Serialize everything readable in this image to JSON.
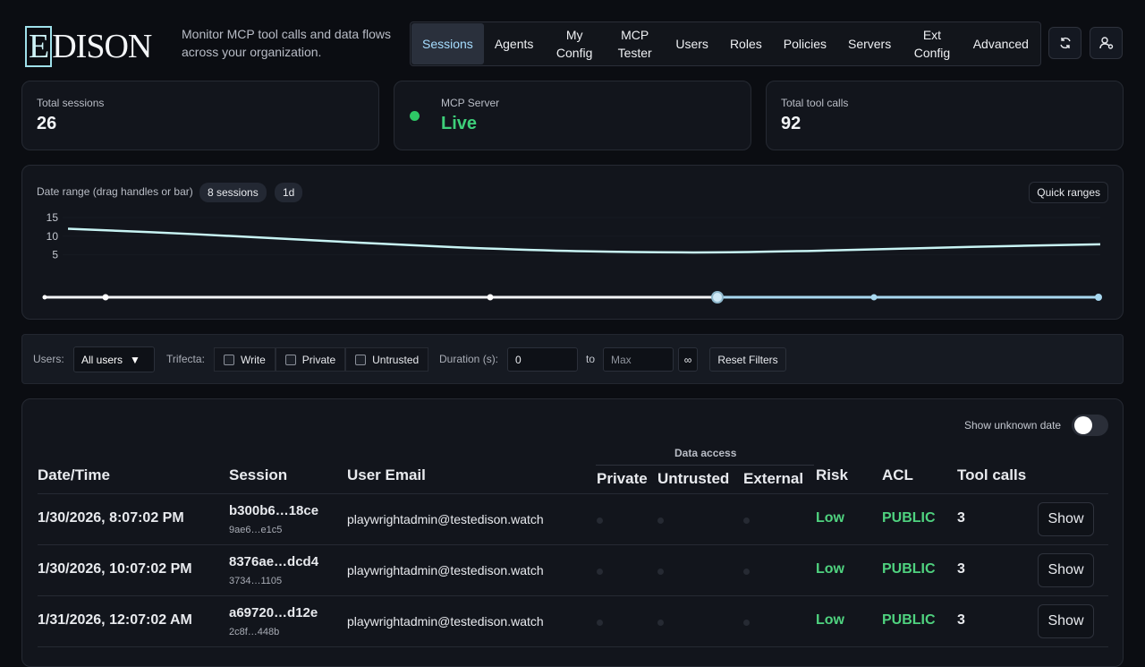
{
  "header": {
    "logo": "EDISON",
    "tagline": "Monitor MCP tool calls and data flows across your organization.",
    "nav": [
      "Sessions",
      "Agents",
      "My Config",
      "MCP Tester",
      "Users",
      "Roles",
      "Policies",
      "Servers",
      "Ext Config",
      "Advanced"
    ]
  },
  "stats": [
    {
      "label": "Total sessions",
      "value": 26
    },
    {
      "label": "MCP Server",
      "value": "Live"
    },
    {
      "label": "Total tool calls",
      "value": 92
    }
  ],
  "date_range": {
    "label": "Date range (drag handles or bar)",
    "badges": [
      "8 sessions",
      "1d"
    ],
    "quick_ranges": "Quick ranges",
    "chart": {
      "type": "line",
      "ylim": [
        0,
        16
      ],
      "yticks": [
        5,
        10,
        15
      ],
      "values": [
        12,
        10.5,
        8.7,
        7,
        5.9,
        5.6,
        6.2,
        7.1,
        7.8
      ],
      "color": "#c8f4f4"
    }
  },
  "filters": {
    "users_label": "Users:",
    "users_value": "All users",
    "trifecta_label": "Trifecta:",
    "trifecta": [
      "Write",
      "Private",
      "Untrusted"
    ],
    "duration_label": "Duration (s):",
    "min": "0",
    "to": "to",
    "max": "Max",
    "infinity": "∞",
    "reset": "Reset Filters"
  },
  "table": {
    "toggle_label": "Show unknown date",
    "group_header": "Data access",
    "headers": [
      "Date/Time",
      "Session",
      "User Email",
      "Private",
      "Untrusted",
      "External",
      "Risk",
      "ACL",
      "Tool calls"
    ],
    "rows": [
      {
        "date": "1/30/2026, 8:07:02 PM",
        "session": "b300b6…18ce",
        "session_sub": "9ae6…e1c5",
        "email": "playwrightadmin@testedison.watch",
        "risk": "Low",
        "acl": "PUBLIC",
        "tool_calls": 3,
        "action": "Show"
      },
      {
        "date": "1/30/2026, 10:07:02 PM",
        "session": "8376ae…dcd4",
        "session_sub": "3734…1105",
        "email": "playwrightadmin@testedison.watch",
        "risk": "Low",
        "acl": "PUBLIC",
        "tool_calls": 3,
        "action": "Show"
      },
      {
        "date": "1/31/2026, 12:07:02 AM",
        "session": "a69720…d12e",
        "session_sub": "2c8f…448b",
        "email": "playwrightadmin@testedison.watch",
        "risk": "Low",
        "acl": "PUBLIC",
        "tool_calls": 3,
        "action": "Show"
      }
    ]
  }
}
